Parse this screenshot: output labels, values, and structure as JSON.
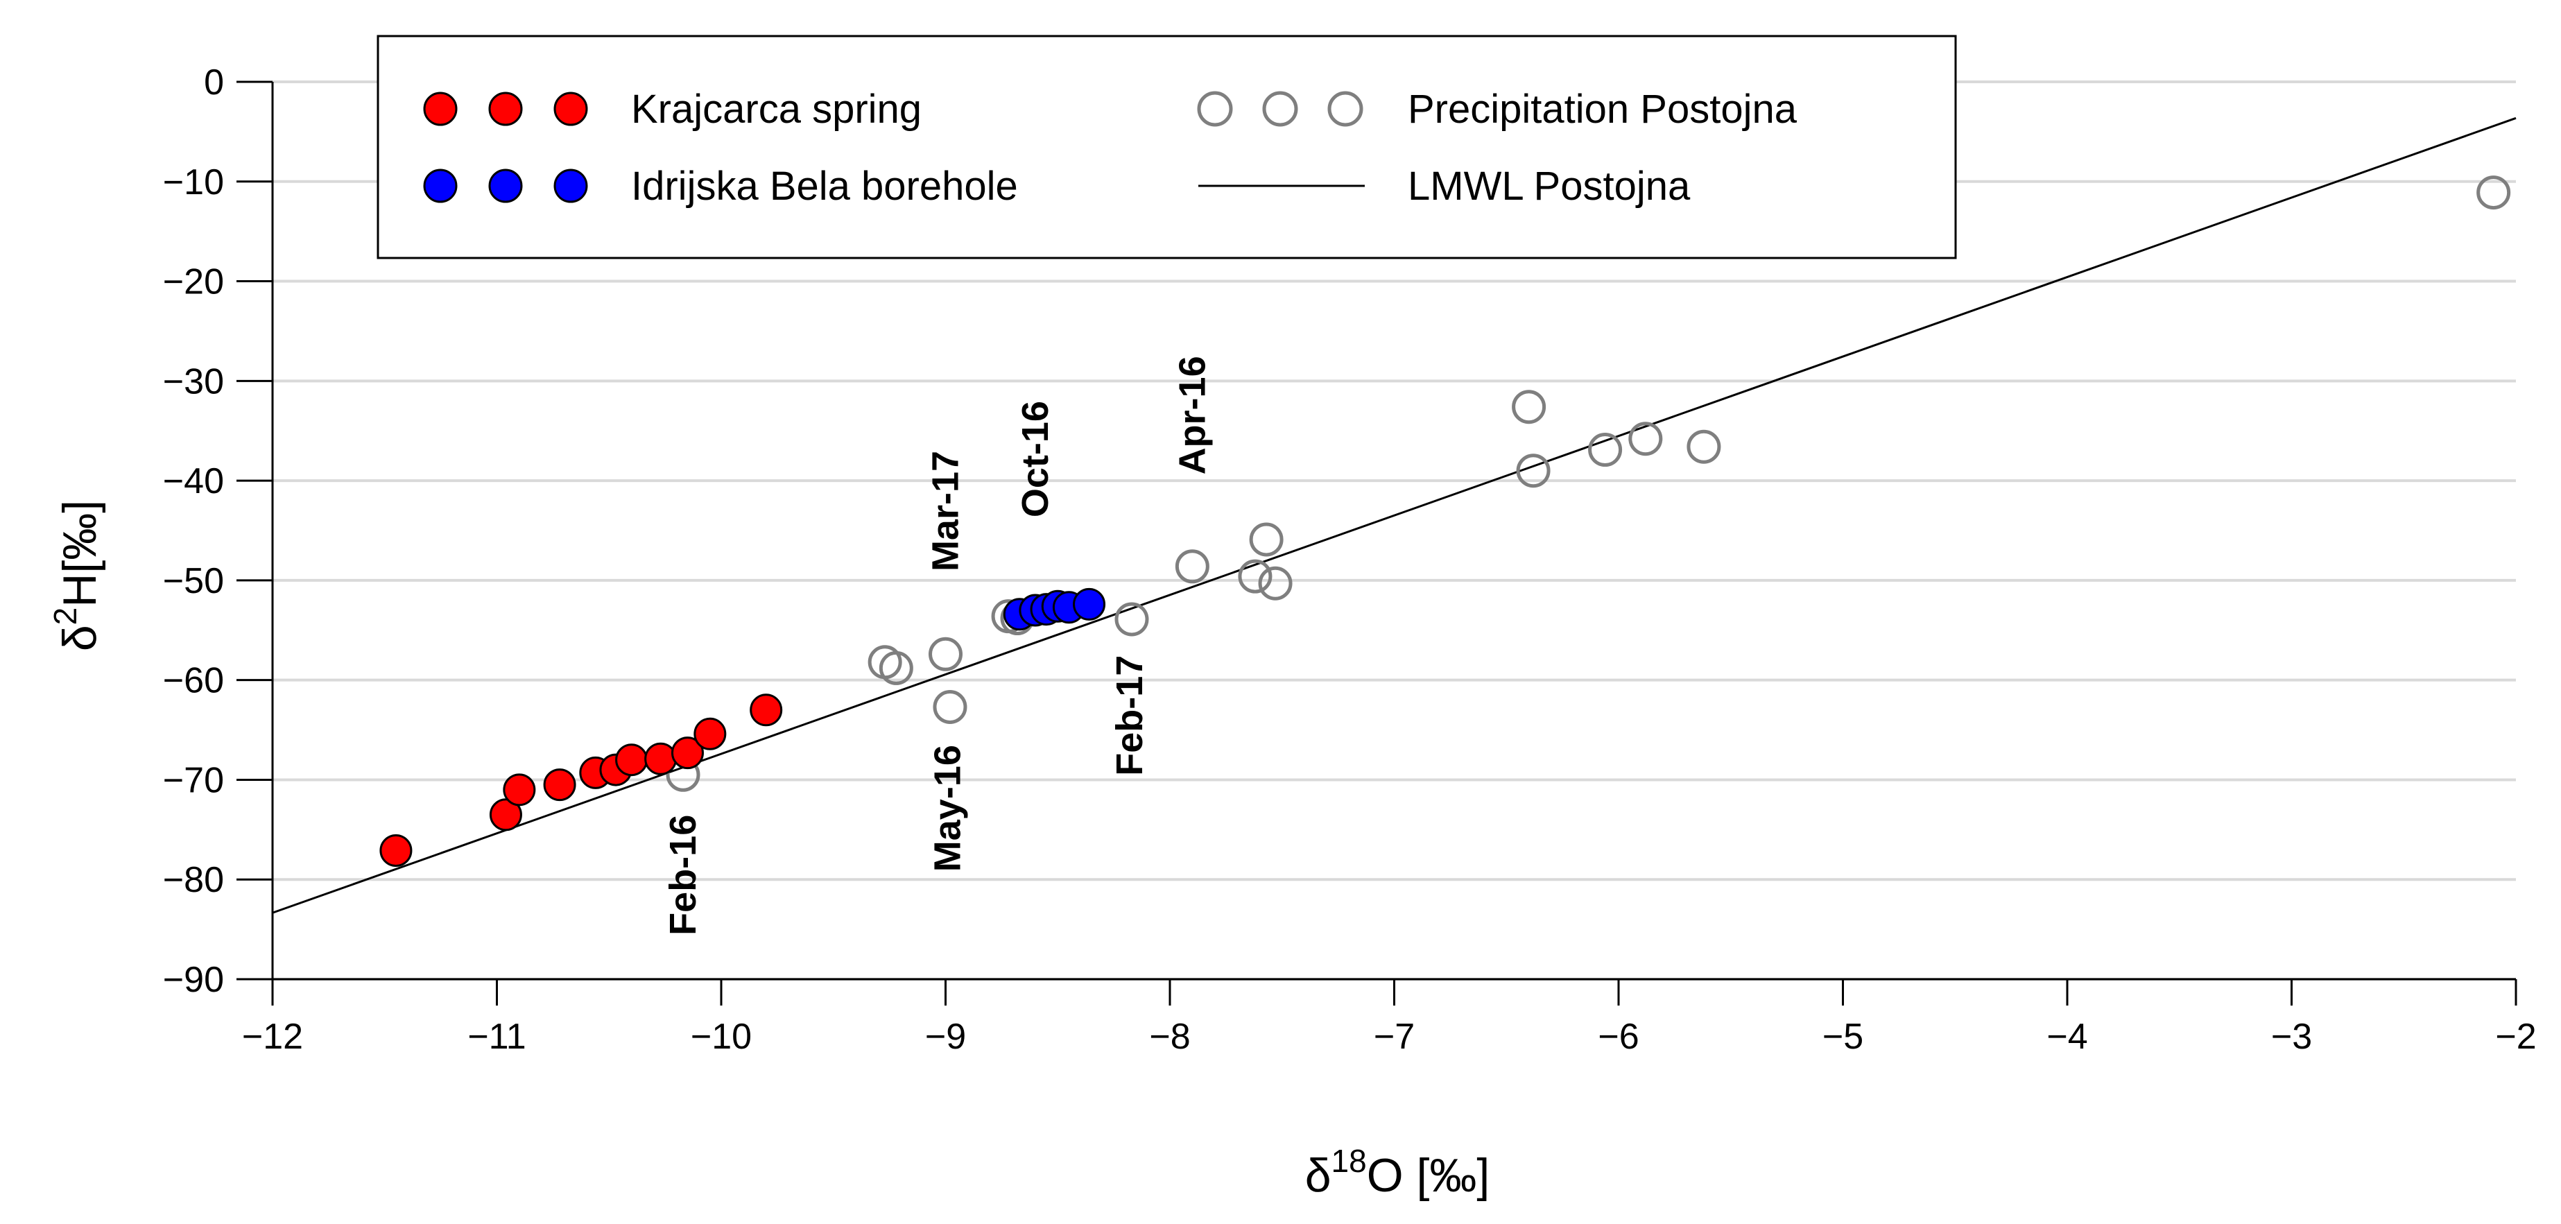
{
  "chart_data": {
    "type": "scatter",
    "title": "",
    "xlabel": {
      "symbol": "δ",
      "sup": "18",
      "rest": "O [‰]"
    },
    "ylabel": {
      "symbol": "δ",
      "sup": "2",
      "rest": "H[‰]"
    },
    "xlim": [
      -12,
      -2
    ],
    "ylim": [
      -90,
      0
    ],
    "xticks": [
      -12,
      -11,
      -10,
      -9,
      -8,
      -7,
      -6,
      -5,
      -4,
      -3,
      -2
    ],
    "yticks": [
      0,
      -10,
      -20,
      -30,
      -40,
      -50,
      -60,
      -70,
      -80,
      -90
    ],
    "xtick_labels": [
      "−12",
      "−11",
      "−10",
      "−9",
      "−8",
      "−7",
      "−6",
      "−5",
      "−4",
      "−3",
      "−2"
    ],
    "ytick_labels": [
      "0",
      "−10",
      "−20",
      "−30",
      "−40",
      "−50",
      "−60",
      "−70",
      "−80",
      "−90"
    ],
    "grid": "horizontal",
    "legend_position": "top-left",
    "series": [
      {
        "name": "Precipitation Postojna",
        "marker": "open-circle",
        "color": "#7f7f7f",
        "points": [
          [
            -10.17,
            -69.5
          ],
          [
            -9.27,
            -58.2
          ],
          [
            -9.22,
            -58.8
          ],
          [
            -9.0,
            -57.4
          ],
          [
            -8.98,
            -62.7
          ],
          [
            -8.72,
            -53.6
          ],
          [
            -8.68,
            -53.8
          ],
          [
            -8.17,
            -53.9
          ],
          [
            -7.9,
            -48.6
          ],
          [
            -7.62,
            -49.6
          ],
          [
            -7.57,
            -45.9
          ],
          [
            -7.53,
            -50.3
          ],
          [
            -6.4,
            -32.6
          ],
          [
            -6.38,
            -39.0
          ],
          [
            -6.06,
            -36.9
          ],
          [
            -5.88,
            -35.8
          ],
          [
            -5.62,
            -36.6
          ],
          [
            -2.1,
            -11.1
          ]
        ]
      },
      {
        "name": "Krajcarca spring",
        "marker": "filled-circle",
        "color": "#ff0000",
        "points": [
          [
            -11.45,
            -77.1
          ],
          [
            -10.96,
            -73.5
          ],
          [
            -10.9,
            -71.0
          ],
          [
            -10.72,
            -70.5
          ],
          [
            -10.56,
            -69.3
          ],
          [
            -10.47,
            -69.0
          ],
          [
            -10.4,
            -68.0
          ],
          [
            -10.27,
            -67.9
          ],
          [
            -10.15,
            -67.3
          ],
          [
            -10.05,
            -65.4
          ],
          [
            -9.8,
            -63.0
          ]
        ]
      },
      {
        "name": "Idrijska Bela borehole",
        "marker": "filled-circle",
        "color": "#0000ff",
        "points": [
          [
            -8.67,
            -53.4
          ],
          [
            -8.6,
            -53.0
          ],
          [
            -8.55,
            -52.9
          ],
          [
            -8.5,
            -52.6
          ],
          [
            -8.45,
            -52.7
          ],
          [
            -8.36,
            -52.4
          ]
        ]
      }
    ],
    "line": {
      "name": "LMWL Postojna",
      "slope": 7.97,
      "intercept": 12.3,
      "x_range": [
        -12,
        -2
      ],
      "color": "#000000"
    },
    "annotations": [
      {
        "text": "Feb-16",
        "x": -10.17,
        "y_top": -73.5
      },
      {
        "text": "May-16",
        "x": -8.99,
        "y_top": -66.5
      },
      {
        "text": "Mar-17",
        "x": -9.0,
        "y_top": -37.0
      },
      {
        "text": "Oct-16",
        "x": -8.6,
        "y_top": -32.0
      },
      {
        "text": "Feb-17",
        "x": -8.18,
        "y_top": -57.5
      },
      {
        "text": "Apr-16",
        "x": -7.9,
        "y_top": -27.5
      }
    ],
    "legend": [
      {
        "label": "Krajcarca spring",
        "marker": "filled-circle",
        "color": "#ff0000"
      },
      {
        "label": "Idrijska Bela borehole",
        "marker": "filled-circle",
        "color": "#0000ff"
      },
      {
        "label": "Precipitation Postojna",
        "marker": "open-circle",
        "color": "#7f7f7f"
      },
      {
        "label": "LMWL Postojna",
        "marker": "line",
        "color": "#000000"
      }
    ]
  }
}
